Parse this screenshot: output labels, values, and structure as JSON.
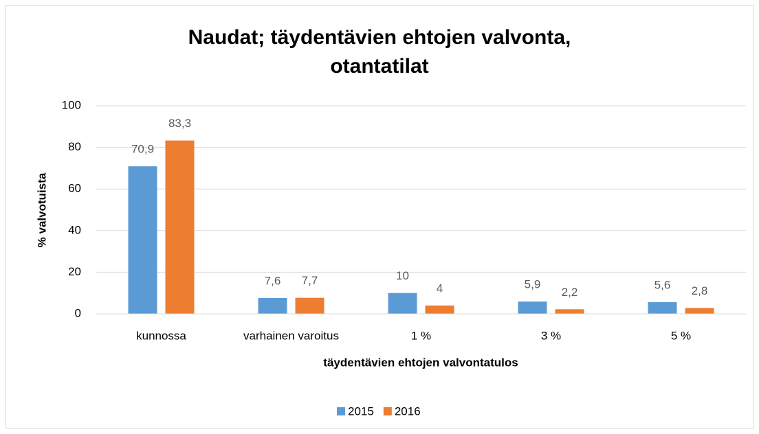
{
  "chart_data": {
    "type": "bar",
    "title": "Naudat; täydentävien ehtojen valvonta, otantatilat",
    "x_label": "täydentävien ehtojen valvontatulos",
    "y_label": "% valvotuista",
    "categories": [
      "kunnossa",
      "varhainen varoitus",
      "1 %",
      "3 %",
      "5 %"
    ],
    "series": [
      {
        "name": "2015",
        "color": "#5b9bd5",
        "values": [
          70.9,
          7.6,
          10,
          5.9,
          5.6
        ],
        "value_labels": [
          "70,9",
          "7,6",
          "10",
          "5,9",
          "5,6"
        ]
      },
      {
        "name": "2016",
        "color": "#ed7d31",
        "values": [
          83.3,
          7.7,
          4,
          2.2,
          2.8
        ],
        "value_labels": [
          "83,3",
          "7,7",
          "4",
          "2,2",
          "2,8"
        ]
      }
    ],
    "ylim": [
      0,
      100
    ],
    "yticks": [
      0,
      20,
      40,
      60,
      80,
      100
    ],
    "grid": true,
    "legend": "bottom"
  }
}
